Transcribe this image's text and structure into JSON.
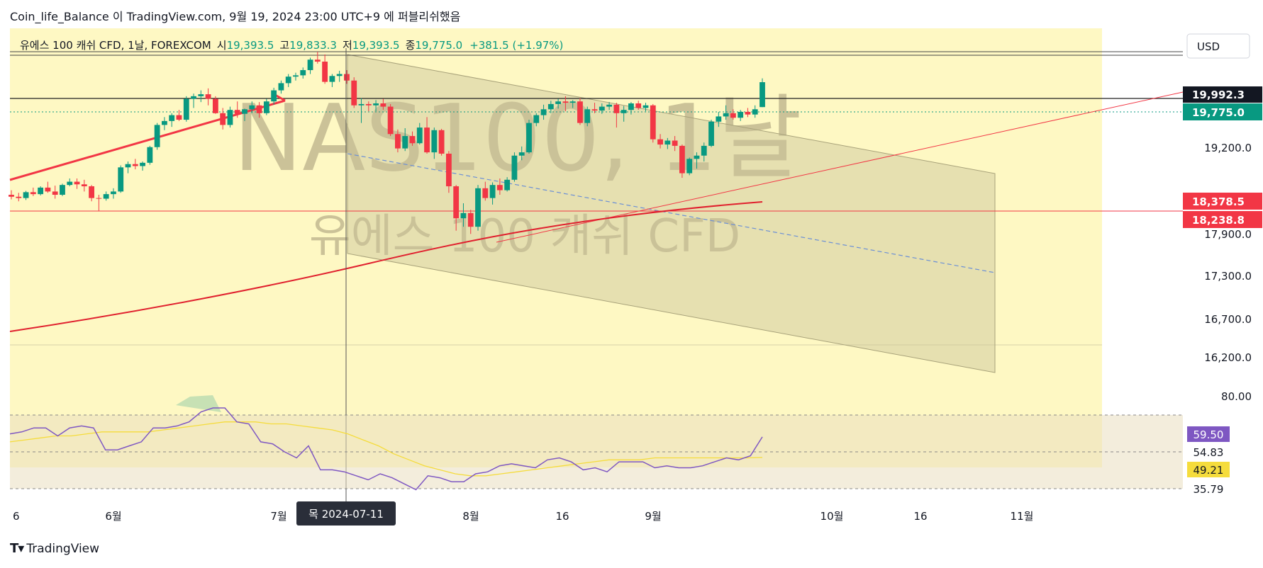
{
  "header": {
    "author": "Coin_life_Balance",
    "published_text": "이 TradingView.com, 9월 19, 2024 23:00 UTC+9 에 퍼블리쉬했음"
  },
  "legend": {
    "symbol": "유에스 100 캐쉬 CFD, 1날, FOREXCOM",
    "open_label": "시",
    "open": "19,393.5",
    "high_label": "고",
    "high": "19,833.3",
    "low_label": "저",
    "low": "19,393.5",
    "close_label": "종",
    "close": "19,775.0",
    "change": "+381.5 (+1.97%)"
  },
  "currency": "USD",
  "watermark": {
    "ticker": "NAS100, 1날",
    "name": "유에스 100 캐쉬 CFD"
  },
  "brand": "TradingView",
  "colors": {
    "up": "#089981",
    "down": "#f23645",
    "bg": "#fef8c3",
    "rsi": "#7e57c2",
    "rsi_ma": "#f5dc3c"
  },
  "chart_data": [
    {
      "type": "candlestick",
      "ylim": [
        15750,
        20600
      ],
      "y_ticks": [
        "19,200.0",
        "18,378.5",
        "17,900.0",
        "17,300.0",
        "16,700.0",
        "16,200.0"
      ],
      "price_labels": {
        "hline_black": "19,992.3",
        "last": "19,775.0",
        "red_level": "18,378.5",
        "red_line": "18,238.8"
      },
      "x_labels": [
        "6",
        "6월",
        "7월",
        "8월",
        "16",
        "9월",
        "10월",
        "16",
        "11월"
      ],
      "crosshair_label": "목 2024-07-11",
      "ohlc": [
        [
          18050,
          18120,
          17980,
          18020
        ],
        [
          18020,
          18080,
          17950,
          18000
        ],
        [
          18000,
          18110,
          17970,
          18090
        ],
        [
          18090,
          18160,
          18030,
          18060
        ],
        [
          18060,
          18180,
          18040,
          18160
        ],
        [
          18160,
          18250,
          18080,
          18100
        ],
        [
          18100,
          18190,
          17990,
          18050
        ],
        [
          18050,
          18220,
          18030,
          18200
        ],
        [
          18200,
          18300,
          18180,
          18250
        ],
        [
          18250,
          18300,
          18140,
          18210
        ],
        [
          18210,
          18280,
          18100,
          18180
        ],
        [
          18180,
          18200,
          17950,
          18000
        ],
        [
          18000,
          18050,
          17800,
          17990
        ],
        [
          17990,
          18100,
          17960,
          18060
        ],
        [
          18060,
          18150,
          17990,
          18100
        ],
        [
          18100,
          18500,
          18080,
          18470
        ],
        [
          18470,
          18560,
          18380,
          18520
        ],
        [
          18520,
          18600,
          18440,
          18490
        ],
        [
          18490,
          18560,
          18420,
          18540
        ],
        [
          18540,
          18800,
          18510,
          18780
        ],
        [
          18780,
          19150,
          18740,
          19120
        ],
        [
          19120,
          19240,
          19040,
          19180
        ],
        [
          19180,
          19300,
          19090,
          19270
        ],
        [
          19270,
          19350,
          19180,
          19200
        ],
        [
          19200,
          19560,
          19170,
          19520
        ],
        [
          19520,
          19600,
          19380,
          19560
        ],
        [
          19560,
          19650,
          19470,
          19590
        ],
        [
          19590,
          19680,
          19420,
          19520
        ],
        [
          19520,
          19560,
          19290,
          19300
        ],
        [
          19300,
          19380,
          19050,
          19120
        ],
        [
          19120,
          19400,
          19080,
          19350
        ],
        [
          19350,
          19480,
          19230,
          19290
        ],
        [
          19290,
          19370,
          19180,
          19360
        ],
        [
          19360,
          19480,
          19300,
          19420
        ],
        [
          19420,
          19470,
          19230,
          19300
        ],
        [
          19300,
          19520,
          19270,
          19480
        ],
        [
          19480,
          19690,
          19430,
          19650
        ],
        [
          19650,
          19800,
          19600,
          19760
        ],
        [
          19760,
          19900,
          19700,
          19860
        ],
        [
          19860,
          19920,
          19800,
          19880
        ],
        [
          19880,
          20000,
          19830,
          19960
        ],
        [
          19960,
          20150,
          19900,
          20120
        ],
        [
          20120,
          20240,
          20060,
          20090
        ],
        [
          20090,
          20200,
          19750,
          19780
        ],
        [
          19780,
          19900,
          19700,
          19870
        ],
        [
          19870,
          19950,
          19780,
          19900
        ],
        [
          19900,
          19960,
          19750,
          19800
        ],
        [
          19800,
          19850,
          19380,
          19420
        ],
        [
          19420,
          19530,
          19150,
          19440
        ],
        [
          19440,
          19480,
          19330,
          19420
        ],
        [
          19420,
          19500,
          19330,
          19450
        ],
        [
          19450,
          19520,
          19350,
          19400
        ],
        [
          19400,
          19440,
          18950,
          18980
        ],
        [
          18980,
          19050,
          18700,
          18760
        ],
        [
          18760,
          19070,
          18720,
          18950
        ],
        [
          18950,
          19020,
          18800,
          18840
        ],
        [
          18840,
          19150,
          18820,
          19080
        ],
        [
          19080,
          19240,
          18680,
          18700
        ],
        [
          18700,
          19080,
          18600,
          19040
        ],
        [
          19040,
          19060,
          18650,
          18680
        ],
        [
          18680,
          18720,
          18080,
          18180
        ],
        [
          18180,
          18200,
          17500,
          17690
        ],
        [
          17690,
          17920,
          17560,
          17770
        ],
        [
          17770,
          17820,
          17450,
          17560
        ],
        [
          17560,
          18200,
          17500,
          18150
        ],
        [
          18150,
          18250,
          17960,
          18000
        ],
        [
          18000,
          18240,
          17900,
          18200
        ],
        [
          18200,
          18300,
          18050,
          18120
        ],
        [
          18120,
          18320,
          18100,
          18280
        ],
        [
          18280,
          18700,
          18250,
          18650
        ],
        [
          18650,
          18790,
          18580,
          18700
        ],
        [
          18700,
          19200,
          18680,
          19150
        ],
        [
          19150,
          19300,
          19100,
          19270
        ],
        [
          19270,
          19430,
          19200,
          19360
        ],
        [
          19360,
          19490,
          19300,
          19440
        ],
        [
          19440,
          19520,
          19370,
          19480
        ],
        [
          19480,
          19560,
          19330,
          19460
        ],
        [
          19460,
          19500,
          19380,
          19480
        ],
        [
          19480,
          19530,
          19120,
          19150
        ],
        [
          19150,
          19400,
          19100,
          19360
        ],
        [
          19360,
          19460,
          19300,
          19340
        ],
        [
          19340,
          19450,
          19290,
          19400
        ],
        [
          19400,
          19470,
          19350,
          19430
        ],
        [
          19430,
          19460,
          19080,
          19300
        ],
        [
          19300,
          19410,
          19170,
          19350
        ],
        [
          19350,
          19470,
          19280,
          19450
        ],
        [
          19450,
          19490,
          19350,
          19380
        ],
        [
          19380,
          19460,
          19330,
          19420
        ],
        [
          19420,
          19440,
          18850,
          18900
        ],
        [
          18900,
          18980,
          18760,
          18820
        ],
        [
          18820,
          18920,
          18750,
          18880
        ],
        [
          18880,
          18950,
          18720,
          18800
        ],
        [
          18800,
          18820,
          18310,
          18380
        ],
        [
          18380,
          18620,
          18350,
          18600
        ],
        [
          18600,
          18700,
          18450,
          18650
        ],
        [
          18650,
          18850,
          18560,
          18800
        ],
        [
          18800,
          19200,
          18780,
          19170
        ],
        [
          19170,
          19320,
          19090,
          19250
        ],
        [
          19250,
          19420,
          19200,
          19300
        ],
        [
          19300,
          19360,
          19200,
          19230
        ],
        [
          19230,
          19350,
          19180,
          19320
        ],
        [
          19320,
          19380,
          19240,
          19280
        ],
        [
          19280,
          19420,
          19230,
          19360
        ],
        [
          19393.5,
          19833.3,
          19393.5,
          19775
        ]
      ]
    },
    {
      "type": "line",
      "name": "RSI",
      "ylim": [
        30,
        85
      ],
      "y_ticks": [
        "80.00",
        "54.83",
        "35.79"
      ],
      "levels": [
        70,
        54.83,
        35.79
      ],
      "value_labels": {
        "rsi": "59.50",
        "rsi_ma": "49.21"
      },
      "rsi": [
        61,
        62,
        64,
        64,
        60,
        64,
        65,
        64,
        53,
        53,
        55,
        57,
        64,
        64,
        65,
        67,
        72,
        74,
        74,
        67,
        66,
        57,
        56,
        52,
        49,
        55,
        43,
        43,
        42,
        40,
        38,
        41,
        39,
        36,
        33,
        40,
        39,
        37,
        37,
        41,
        42,
        45,
        46,
        45,
        44,
        48,
        49,
        47,
        43,
        44,
        42,
        47,
        47,
        47,
        44,
        45,
        44,
        44,
        45,
        47,
        49,
        48,
        50,
        59.5
      ],
      "rsi_ma": [
        57,
        58,
        59,
        60,
        60,
        61,
        62,
        62,
        62,
        62,
        63,
        64,
        65,
        66,
        67,
        67,
        67,
        66,
        66,
        65,
        64,
        63,
        61,
        58,
        55,
        51,
        48,
        45,
        43,
        41,
        40,
        40,
        41,
        42,
        43,
        44,
        45,
        46,
        47,
        48,
        48,
        48,
        49,
        49,
        49,
        49,
        49,
        49,
        49,
        49.21
      ]
    }
  ]
}
